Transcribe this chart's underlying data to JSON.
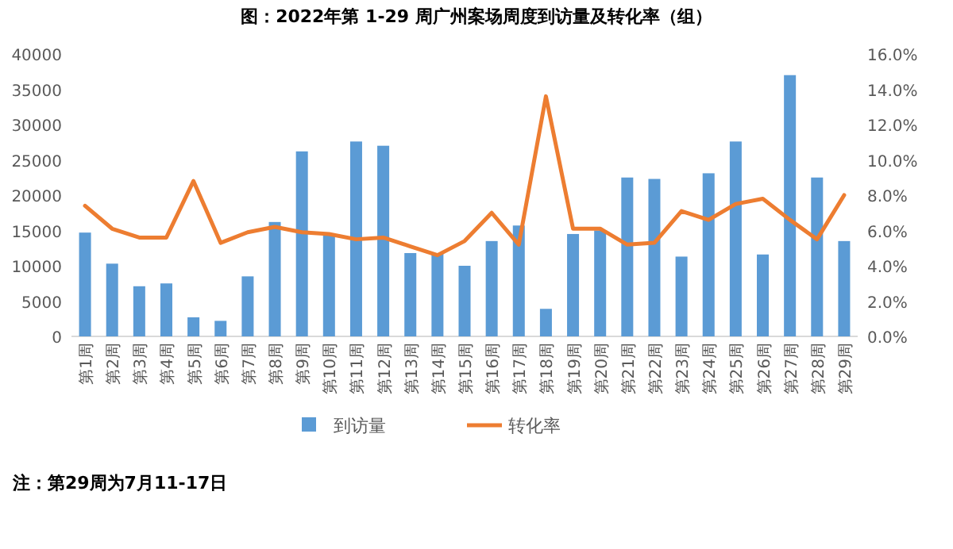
{
  "chart_data": {
    "type": "bar",
    "title": "图：2022年第 1-29 周广州案场周度到访量及转化率（组）",
    "categories": [
      "第1周",
      "第2周",
      "第3周",
      "第4周",
      "第5周",
      "第6周",
      "第7周",
      "第8周",
      "第9周",
      "第10周",
      "第11周",
      "第12周",
      "第13周",
      "第14周",
      "第15周",
      "第16周",
      "第17周",
      "第18周",
      "第19周",
      "第20周",
      "第21周",
      "第22周",
      "第23周",
      "第24周",
      "第25周",
      "第26周",
      "第27周",
      "第28周",
      "第29周"
    ],
    "series": [
      {
        "name": "到访量",
        "color": "#5b9bd5",
        "values": [
          14700,
          10300,
          7100,
          7500,
          2700,
          2200,
          8500,
          16200,
          26200,
          14400,
          27600,
          27000,
          11800,
          11800,
          10000,
          13500,
          15700,
          3900,
          14500,
          15000,
          22500,
          22300,
          11300,
          23100,
          27600,
          11600,
          37000,
          22500,
          13500
        ]
      },
      {
        "name": "转化率",
        "type": "line",
        "axis": "y2",
        "color": "#ed7d31",
        "values": [
          7.4,
          6.1,
          5.6,
          5.6,
          8.8,
          5.3,
          5.9,
          6.2,
          5.9,
          5.8,
          5.5,
          5.6,
          5.1,
          4.6,
          5.4,
          7.0,
          5.2,
          13.6,
          6.1,
          6.1,
          5.2,
          5.3,
          7.1,
          6.6,
          7.5,
          7.8,
          6.6,
          5.5,
          8.0
        ]
      }
    ],
    "ylim": [
      0,
      40000
    ],
    "yticks": [
      0,
      5000,
      10000,
      15000,
      20000,
      25000,
      30000,
      35000,
      40000
    ],
    "y2lim": [
      0,
      16
    ],
    "y2ticks": [
      {
        "value": 0,
        "label": "0.0%"
      },
      {
        "value": 2,
        "label": "2.0%"
      },
      {
        "value": 4,
        "label": "4.0%"
      },
      {
        "value": 6,
        "label": "6.0%"
      },
      {
        "value": 8,
        "label": "8.0%"
      },
      {
        "value": 10,
        "label": "10.0%"
      },
      {
        "value": 12,
        "label": "12.0%"
      },
      {
        "value": 14,
        "label": "14.0%"
      },
      {
        "value": 16,
        "label": "16.0%"
      }
    ],
    "grid": false,
    "legend": "bottom",
    "marker": "none",
    "line_style": "solid",
    "annotations": [
      "注：第29周为7月11-17日"
    ]
  }
}
